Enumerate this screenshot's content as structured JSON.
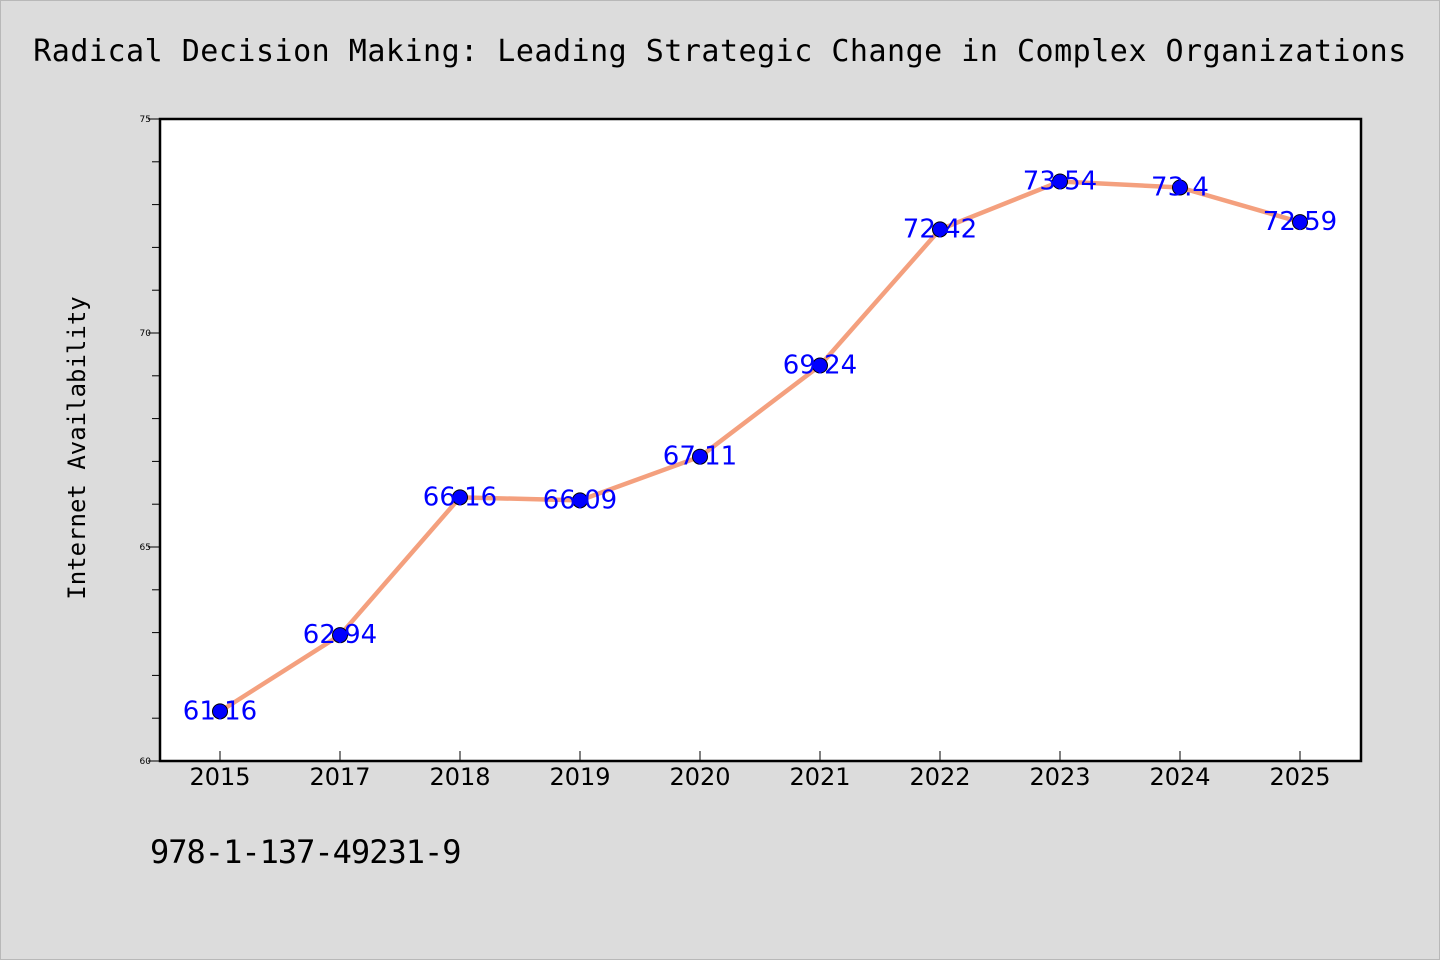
{
  "title": "Radical Decision Making: Leading Strategic Change in Complex Organizations",
  "isbn": "978-1-137-49231-9",
  "chart_data": {
    "type": "line",
    "title": "Radical Decision Making: Leading Strategic Change in Complex Organizations",
    "xlabel": "",
    "ylabel": "Internet Availability",
    "categories": [
      "2015",
      "2017",
      "2018",
      "2019",
      "2020",
      "2021",
      "2022",
      "2023",
      "2024",
      "2025"
    ],
    "values": [
      61.16,
      62.94,
      66.16,
      66.09,
      67.11,
      69.24,
      72.42,
      73.54,
      73.4,
      72.59
    ],
    "data_labels": [
      "61.16",
      "62.94",
      "66.16",
      "66.09",
      "67.11",
      "69.24",
      "72.42",
      "73.54",
      "73.4",
      "72.59"
    ],
    "ylim": [
      60,
      75
    ],
    "yticks": [
      "60",
      "65",
      "70",
      "75"
    ],
    "grid": false,
    "legend": "none",
    "colors": {
      "line": "#f4a07e",
      "marker": "#0000ff",
      "label": "#0000ff",
      "plot_background": "#ffffff",
      "figure_background": "#dcdcdc"
    }
  }
}
